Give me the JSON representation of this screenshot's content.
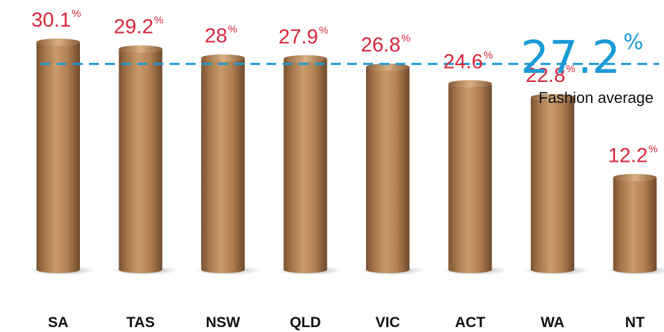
{
  "chart_data": {
    "type": "bar",
    "categories": [
      "SA",
      "TAS",
      "NSW",
      "QLD",
      "VIC",
      "ACT",
      "WA",
      "NT"
    ],
    "values": [
      30.1,
      29.2,
      28,
      27.9,
      26.8,
      24.6,
      22.8,
      12.2
    ],
    "value_labels": [
      "30.1",
      "29.2",
      "28",
      "27.9",
      "26.8",
      "24.6",
      "22.8",
      "12.2"
    ],
    "value_suffix": "%",
    "average": {
      "value": 27.2,
      "value_label": "27.2",
      "suffix": "%",
      "label": "Fashion average"
    },
    "ylim": [
      0,
      30.1
    ],
    "grid": false,
    "bar_style": "cardboard tubes",
    "colors": {
      "value_label": "#d7263d",
      "average": "#1a9ad6",
      "tube_mid": "#b07f52",
      "tube_dark": "#7a5232",
      "tube_light": "#c99a6a",
      "category_label": "#111111"
    }
  }
}
